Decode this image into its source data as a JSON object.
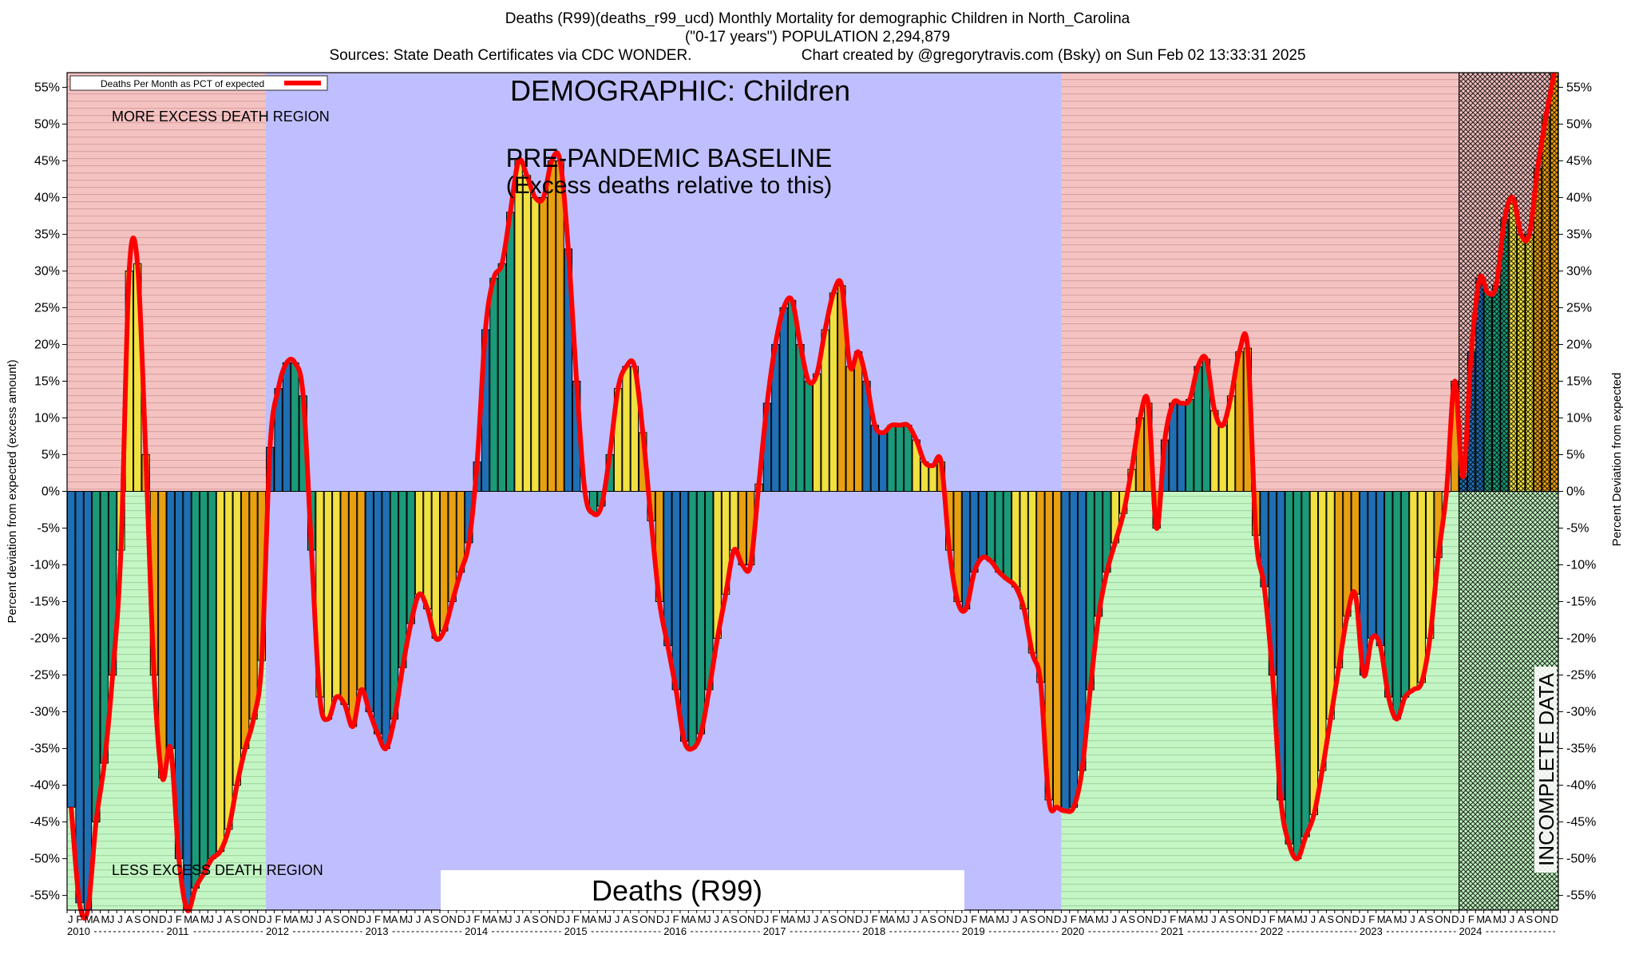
{
  "header": {
    "title_line1": "Deaths (R99)(deaths_r99_ucd) Monthly Mortality for demographic Children in North_Carolina",
    "title_line2": "(\"0-17 years\") POPULATION 2,294,879",
    "title_line3_left": "Sources: State Death Certificates via CDC WONDER.",
    "title_line3_right": "Chart created by @gregorytravis.com (Bsky) on Sun Feb 02 13:33:31 2025"
  },
  "colors": {
    "excess_region": "#f5c2c2",
    "less_region": "#c4f5c4",
    "baseline_region": "#bfbfff",
    "incomplete_hatch": "#000000",
    "line": "#ff0000",
    "bar_blue": "#1f6fb4",
    "bar_green": "#1a9a78",
    "bar_yellow": "#f0e040",
    "bar_orange": "#e8a010"
  },
  "chart_data": {
    "type": "bar",
    "title": "DEMOGRAPHIC: Children",
    "ylabel_left": "Percent deviation from expected (excess amount)",
    "ylabel_right": "Percent Deviation from expected",
    "legend": "Deaths Per Month as PCT of expected",
    "legend_position": "top-left",
    "ylim": [
      -57,
      57
    ],
    "yticks": [
      -55,
      -50,
      -45,
      -40,
      -35,
      -30,
      -25,
      -20,
      -15,
      -10,
      -5,
      0,
      5,
      10,
      15,
      20,
      25,
      30,
      35,
      40,
      45,
      50,
      55
    ],
    "start": "2010-01",
    "months": 180,
    "month_letters": [
      "J",
      "F",
      "M",
      "A",
      "M",
      "J",
      "J",
      "A",
      "S",
      "O",
      "N",
      "D"
    ],
    "years": [
      "2010",
      "2011",
      "2012",
      "2013",
      "2014",
      "2015",
      "2016",
      "2017",
      "2018",
      "2019",
      "2020",
      "2021",
      "2022",
      "2023",
      "2024"
    ],
    "annotations": {
      "more_excess": "MORE EXCESS DEATH REGION",
      "less_excess": "LESS EXCESS DEATH REGION",
      "baseline_line1": "PRE-PANDEMIC BASELINE",
      "baseline_line2": "(Excess deaths relative to this)",
      "metric_box": "Deaths (R99)",
      "incomplete": "INCOMPLETE DATA"
    },
    "regions": {
      "baseline": [
        "2012-01",
        "2019-12"
      ],
      "incomplete": [
        "2024-01",
        "2024-12"
      ]
    },
    "grid": false,
    "values": [
      -43,
      -56,
      -57,
      -45,
      -37,
      -25,
      -8,
      30,
      31,
      5,
      -25,
      -39,
      -35,
      -50,
      -57,
      -54,
      -52,
      -50,
      -49,
      -46,
      -40,
      -35,
      -31,
      -23,
      6,
      14,
      17.5,
      17.5,
      13,
      -8,
      -28,
      -31,
      -28,
      -29,
      -32,
      -27,
      -30,
      -33,
      -35,
      -31,
      -24,
      -18,
      -14,
      -16,
      -20,
      -19,
      -15,
      -11,
      -7,
      4,
      22,
      29,
      31,
      38,
      45,
      43,
      40,
      40,
      45,
      45,
      33,
      15,
      0,
      -3,
      -2,
      5,
      14,
      17,
      17,
      8,
      -4,
      -15,
      -21,
      -27,
      -34,
      -35,
      -33,
      -27,
      -20,
      -14,
      -8,
      -10,
      -10,
      1,
      12,
      20,
      25,
      26,
      20,
      15,
      16,
      22,
      27,
      28,
      17,
      19,
      15,
      9,
      8,
      9,
      9,
      9,
      7,
      4,
      3.5,
      4,
      -8,
      -15,
      -16,
      -11,
      -9,
      -9.5,
      -11,
      -12,
      -13,
      -16,
      -22,
      -26,
      -42,
      -43,
      -43.5,
      -43,
      -38,
      -27,
      -17,
      -11,
      -7,
      -3,
      3,
      10,
      12,
      -5,
      7,
      12,
      12,
      12.5,
      17,
      18,
      11,
      9,
      13,
      19,
      19.5,
      -6,
      -13,
      -25,
      -42,
      -48,
      -50,
      -47,
      -44,
      -38,
      -31,
      -24,
      -17,
      -14,
      -25,
      -20,
      -21,
      -28,
      -31,
      -28,
      -27,
      -26,
      -20,
      -9,
      0,
      15,
      2,
      19,
      29,
      27,
      28,
      37,
      40,
      35,
      35,
      44,
      51,
      57
    ]
  }
}
